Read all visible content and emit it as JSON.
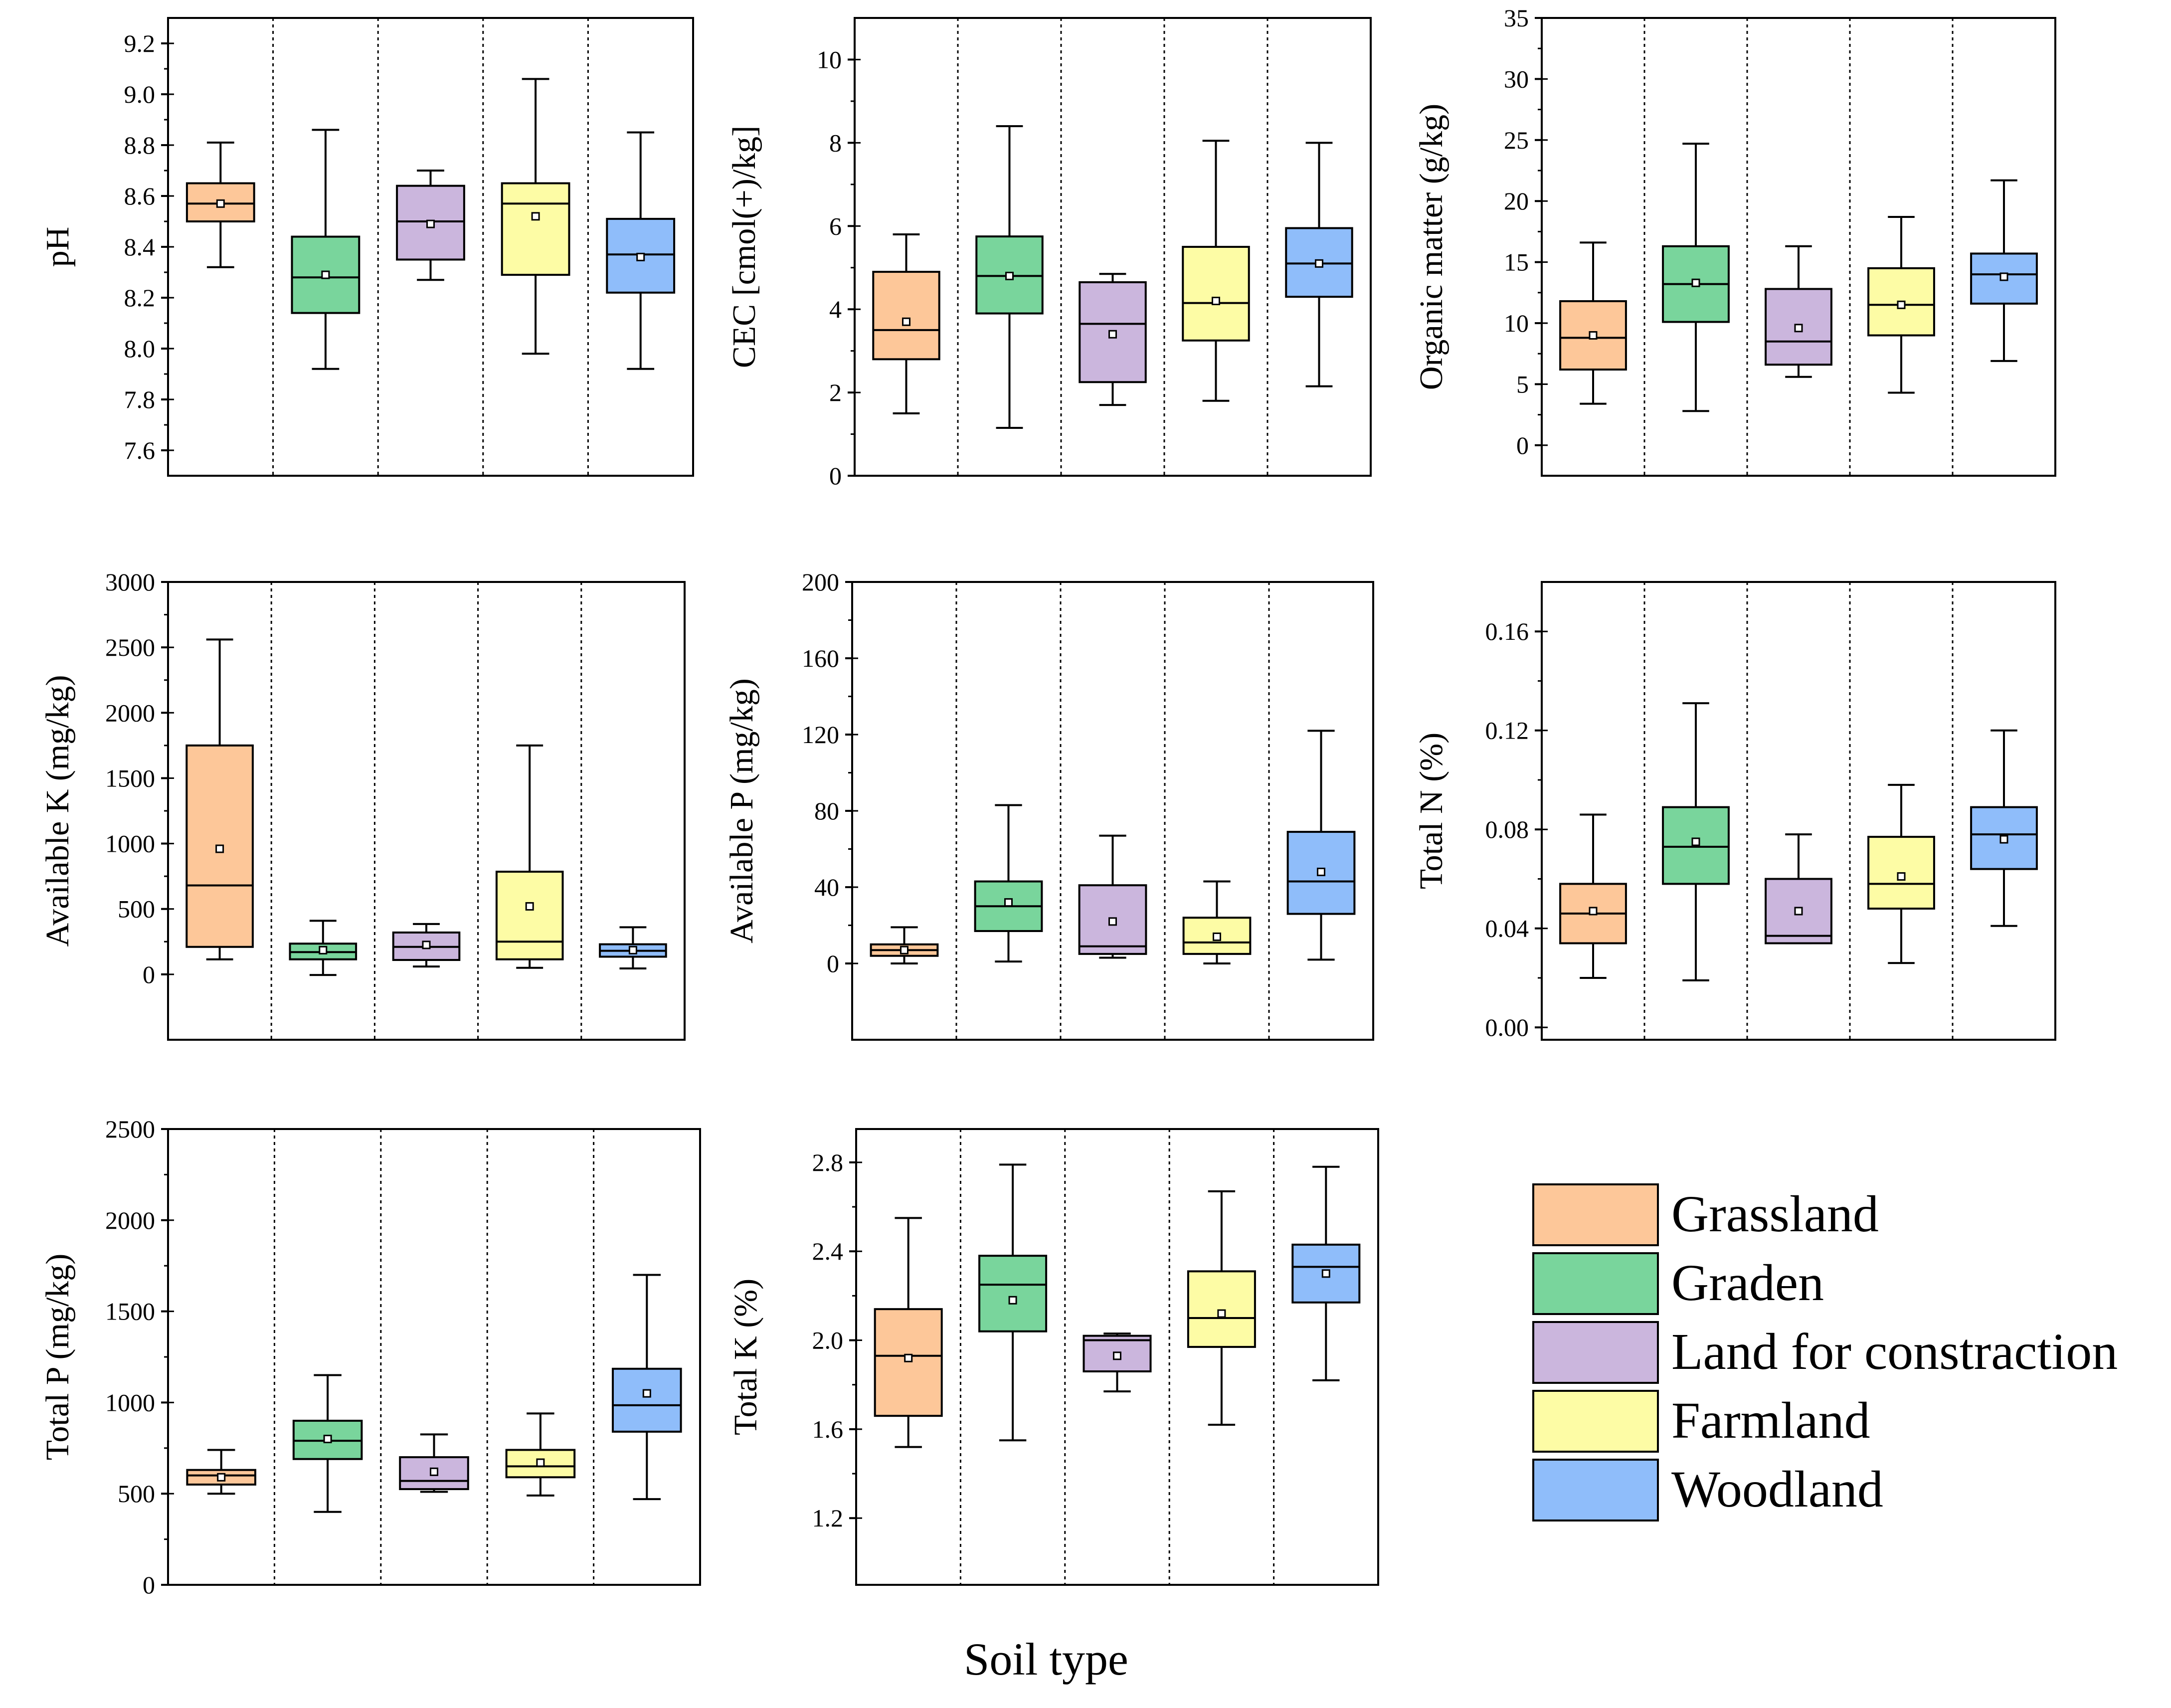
{
  "colors": {
    "Grassland": "#fdc799",
    "Graden": "#79d59c",
    "Land for constraction": "#cbb6dd",
    "Farmland": "#fdfca5",
    "Woodland": "#8fbdfa"
  },
  "xlabel": "Soil type",
  "legend": {
    "items": [
      {
        "label": "Grassland",
        "color": "#fdc799"
      },
      {
        "label": "Graden",
        "color": "#79d59c"
      },
      {
        "label": "Land for constraction",
        "color": "#cbb6dd"
      },
      {
        "label": "Farmland",
        "color": "#fdfca5"
      },
      {
        "label": "Woodland",
        "color": "#8fbdfa"
      }
    ]
  },
  "chart_data": [
    {
      "type": "box",
      "id": "ph",
      "ylabel": "pH",
      "ylim": [
        7.5,
        9.3
      ],
      "yticks": [
        7.6,
        7.8,
        8.0,
        8.2,
        8.4,
        8.6,
        8.8,
        9.0,
        9.2
      ],
      "ytick_labels": [
        "7.6",
        "7.8",
        "8.0",
        "8.2",
        "8.4",
        "8.6",
        "8.8",
        "9.0",
        "9.2"
      ],
      "categories": [
        "Grassland",
        "Graden",
        "Land for constraction",
        "Farmland",
        "Woodland"
      ],
      "boxes": [
        {
          "min": 8.32,
          "q1": 8.5,
          "median": 8.57,
          "q3": 8.65,
          "max": 8.81,
          "mean": 8.57
        },
        {
          "min": 7.92,
          "q1": 8.14,
          "median": 8.28,
          "q3": 8.44,
          "max": 8.86,
          "mean": 8.29
        },
        {
          "min": 8.27,
          "q1": 8.35,
          "median": 8.5,
          "q3": 8.64,
          "max": 8.7,
          "mean": 8.49
        },
        {
          "min": 7.98,
          "q1": 8.29,
          "median": 8.57,
          "q3": 8.65,
          "max": 9.06,
          "mean": 8.52
        },
        {
          "min": 7.92,
          "q1": 8.22,
          "median": 8.37,
          "q3": 8.51,
          "max": 8.85,
          "mean": 8.36
        }
      ]
    },
    {
      "type": "box",
      "id": "cec",
      "ylabel": "CEC [cmol(+)/kg]",
      "ylim": [
        0,
        11
      ],
      "yticks": [
        0,
        2,
        4,
        6,
        8,
        10
      ],
      "ytick_labels": [
        "0",
        "2",
        "4",
        "6",
        "8",
        "10"
      ],
      "categories": [
        "Grassland",
        "Graden",
        "Land for constraction",
        "Farmland",
        "Woodland"
      ],
      "boxes": [
        {
          "min": 1.5,
          "q1": 2.8,
          "median": 3.5,
          "q3": 4.9,
          "max": 5.8,
          "mean": 3.7
        },
        {
          "min": 1.15,
          "q1": 3.9,
          "median": 4.8,
          "q3": 5.75,
          "max": 8.4,
          "mean": 4.8
        },
        {
          "min": 1.7,
          "q1": 2.25,
          "median": 3.65,
          "q3": 4.65,
          "max": 4.85,
          "mean": 3.4
        },
        {
          "min": 1.8,
          "q1": 3.25,
          "median": 4.15,
          "q3": 5.5,
          "max": 8.05,
          "mean": 4.2
        },
        {
          "min": 2.15,
          "q1": 4.3,
          "median": 5.1,
          "q3": 5.95,
          "max": 8.0,
          "mean": 5.1
        }
      ]
    },
    {
      "type": "box",
      "id": "om",
      "ylabel": "Organic matter (g/kg)",
      "ylim": [
        -2.5,
        35
      ],
      "yticks": [
        0,
        5,
        10,
        15,
        20,
        25,
        30,
        35
      ],
      "ytick_labels": [
        "0",
        "5",
        "10",
        "15",
        "20",
        "25",
        "30",
        "35"
      ],
      "categories": [
        "Grassland",
        "Graden",
        "Land for constraction",
        "Farmland",
        "Woodland"
      ],
      "boxes": [
        {
          "min": 3.4,
          "q1": 6.2,
          "median": 8.8,
          "q3": 11.8,
          "max": 16.6,
          "mean": 9.0
        },
        {
          "min": 2.8,
          "q1": 10.1,
          "median": 13.2,
          "q3": 16.3,
          "max": 24.7,
          "mean": 13.3
        },
        {
          "min": 5.6,
          "q1": 6.6,
          "median": 8.5,
          "q3": 12.8,
          "max": 16.3,
          "mean": 9.6
        },
        {
          "min": 4.3,
          "q1": 9.0,
          "median": 11.5,
          "q3": 14.5,
          "max": 18.7,
          "mean": 11.5
        },
        {
          "min": 6.9,
          "q1": 11.6,
          "median": 14.0,
          "q3": 15.7,
          "max": 21.7,
          "mean": 13.8
        }
      ]
    },
    {
      "type": "box",
      "id": "avk",
      "ylabel": "Available K (mg/kg)",
      "ylim": [
        -500,
        3000
      ],
      "yticks": [
        0,
        500,
        1000,
        1500,
        2000,
        2500,
        3000
      ],
      "ytick_labels": [
        "0",
        "500",
        "1000",
        "1500",
        "2000",
        "2500",
        "3000"
      ],
      "categories": [
        "Grassland",
        "Graden",
        "Land for constraction",
        "Farmland",
        "Woodland"
      ],
      "boxes": [
        {
          "min": 115,
          "q1": 210,
          "median": 680,
          "q3": 1750,
          "max": 2560,
          "mean": 960
        },
        {
          "min": -5,
          "q1": 115,
          "median": 170,
          "q3": 235,
          "max": 410,
          "mean": 185
        },
        {
          "min": 60,
          "q1": 110,
          "median": 210,
          "q3": 320,
          "max": 385,
          "mean": 225
        },
        {
          "min": 50,
          "q1": 115,
          "median": 250,
          "q3": 785,
          "max": 1750,
          "mean": 520
        },
        {
          "min": 45,
          "q1": 135,
          "median": 180,
          "q3": 230,
          "max": 360,
          "mean": 185
        }
      ]
    },
    {
      "type": "box",
      "id": "avp",
      "ylabel": "Available P (mg/kg)",
      "ylim": [
        -40,
        200
      ],
      "yticks": [
        0,
        40,
        80,
        120,
        160,
        200
      ],
      "ytick_labels": [
        "0",
        "40",
        "80",
        "120",
        "160",
        "200"
      ],
      "categories": [
        "Grassland",
        "Graden",
        "Land for constraction",
        "Farmland",
        "Woodland"
      ],
      "boxes": [
        {
          "min": 0,
          "q1": 4,
          "median": 7,
          "q3": 10,
          "max": 19,
          "mean": 7
        },
        {
          "min": 1,
          "q1": 17,
          "median": 30,
          "q3": 43,
          "max": 83,
          "mean": 32
        },
        {
          "min": 3,
          "q1": 5,
          "median": 9,
          "q3": 41,
          "max": 67,
          "mean": 22
        },
        {
          "min": 0,
          "q1": 5,
          "median": 11,
          "q3": 24,
          "max": 43,
          "mean": 14
        },
        {
          "min": 2,
          "q1": 26,
          "median": 43,
          "q3": 69,
          "max": 122,
          "mean": 48
        }
      ]
    },
    {
      "type": "box",
      "id": "tn",
      "ylabel": "Total N (%)",
      "ylim": [
        -0.005,
        0.18
      ],
      "yticks": [
        0.0,
        0.04,
        0.08,
        0.12,
        0.16
      ],
      "ytick_labels": [
        "0.00",
        "0.04",
        "0.08",
        "0.12",
        "0.16"
      ],
      "categories": [
        "Grassland",
        "Graden",
        "Land for constraction",
        "Farmland",
        "Woodland"
      ],
      "boxes": [
        {
          "min": 0.02,
          "q1": 0.034,
          "median": 0.046,
          "q3": 0.058,
          "max": 0.086,
          "mean": 0.047
        },
        {
          "min": 0.019,
          "q1": 0.058,
          "median": 0.073,
          "q3": 0.089,
          "max": 0.131,
          "mean": 0.075
        },
        {
          "min": 0.034,
          "q1": 0.034,
          "median": 0.037,
          "q3": 0.06,
          "max": 0.078,
          "mean": 0.047
        },
        {
          "min": 0.026,
          "q1": 0.048,
          "median": 0.058,
          "q3": 0.077,
          "max": 0.098,
          "mean": 0.061
        },
        {
          "min": 0.041,
          "q1": 0.064,
          "median": 0.078,
          "q3": 0.089,
          "max": 0.12,
          "mean": 0.076
        }
      ]
    },
    {
      "type": "box",
      "id": "tp",
      "ylabel": "Total P (mg/kg)",
      "ylim": [
        0,
        2500
      ],
      "yticks": [
        0,
        500,
        1000,
        1500,
        2000,
        2500
      ],
      "ytick_labels": [
        "0",
        "500",
        "1000",
        "1500",
        "2000",
        "2500"
      ],
      "categories": [
        "Grassland",
        "Graden",
        "Land for constraction",
        "Farmland",
        "Woodland"
      ],
      "boxes": [
        {
          "min": 500,
          "q1": 550,
          "median": 600,
          "q3": 630,
          "max": 740,
          "mean": 590
        },
        {
          "min": 400,
          "q1": 690,
          "median": 790,
          "q3": 900,
          "max": 1150,
          "mean": 800
        },
        {
          "min": 510,
          "q1": 525,
          "median": 570,
          "q3": 700,
          "max": 825,
          "mean": 620
        },
        {
          "min": 490,
          "q1": 590,
          "median": 650,
          "q3": 740,
          "max": 940,
          "mean": 670
        },
        {
          "min": 470,
          "q1": 840,
          "median": 985,
          "q3": 1185,
          "max": 1700,
          "mean": 1050
        }
      ]
    },
    {
      "type": "box",
      "id": "tk",
      "ylabel": "Total K (%)",
      "ylim": [
        0.9,
        2.95
      ],
      "yticks": [
        1.2,
        1.6,
        2.0,
        2.4,
        2.8
      ],
      "ytick_labels": [
        "1.2",
        "1.6",
        "2.0",
        "2.4",
        "2.8"
      ],
      "categories": [
        "Grassland",
        "Graden",
        "Land for constraction",
        "Farmland",
        "Woodland"
      ],
      "boxes": [
        {
          "min": 1.52,
          "q1": 1.66,
          "median": 1.93,
          "q3": 2.14,
          "max": 2.55,
          "mean": 1.92
        },
        {
          "min": 1.55,
          "q1": 2.04,
          "median": 2.25,
          "q3": 2.38,
          "max": 2.79,
          "mean": 2.18
        },
        {
          "min": 1.77,
          "q1": 1.86,
          "median": 2.0,
          "q3": 2.02,
          "max": 2.03,
          "mean": 1.93
        },
        {
          "min": 1.62,
          "q1": 1.97,
          "median": 2.1,
          "q3": 2.31,
          "max": 2.67,
          "mean": 2.12
        },
        {
          "min": 1.82,
          "q1": 2.17,
          "median": 2.33,
          "q3": 2.43,
          "max": 2.78,
          "mean": 2.3
        }
      ]
    }
  ]
}
